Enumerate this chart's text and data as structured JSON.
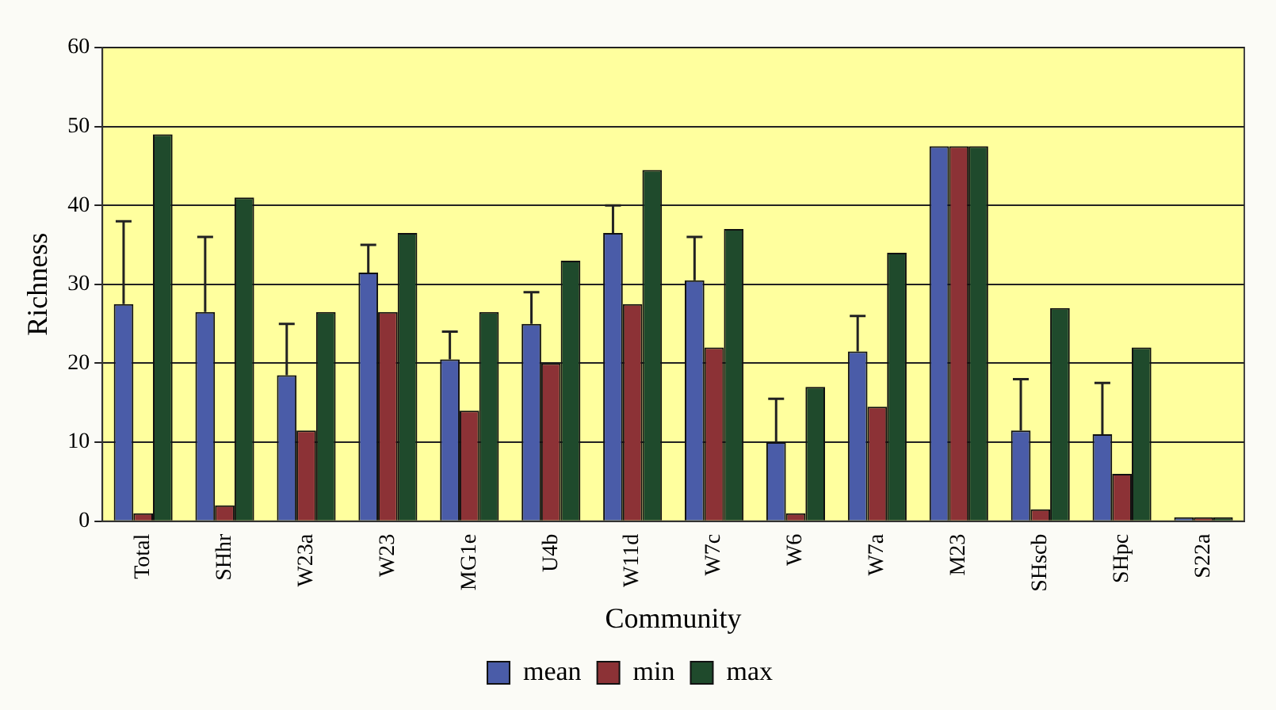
{
  "chart_data": {
    "type": "bar",
    "xlabel": "Community",
    "ylabel": "Richness",
    "categories": [
      "Total",
      "SHhr",
      "W23a",
      "W23",
      "MG1e",
      "U4b",
      "W11d",
      "W7c",
      "W6",
      "W7a",
      "M23",
      "SHscb",
      "SHpc",
      "S22a"
    ],
    "series": [
      {
        "name": "mean",
        "color": "#4a5ca8",
        "values": [
          27.5,
          26.5,
          18.5,
          31.5,
          20.5,
          25,
          36.5,
          30.5,
          10,
          21.5,
          47.5,
          11.5,
          11,
          0.5
        ],
        "errors": [
          [
            27.5,
            38
          ],
          [
            26.5,
            36
          ],
          [
            18.5,
            25
          ],
          [
            31.5,
            35
          ],
          [
            20.5,
            24
          ],
          [
            25,
            29
          ],
          [
            36.5,
            40
          ],
          [
            30.5,
            36
          ],
          [
            10,
            15.5
          ],
          [
            21.5,
            26
          ],
          null,
          [
            11.5,
            18
          ],
          [
            11,
            17.5
          ],
          null
        ]
      },
      {
        "name": "min",
        "color": "#8c3236",
        "values": [
          1,
          2,
          11.5,
          26.5,
          14,
          20,
          27.5,
          22,
          1,
          14.5,
          47.5,
          1.5,
          6,
          0.5
        ]
      },
      {
        "name": "max",
        "color": "#1f4a2c",
        "values": [
          49,
          41,
          26.5,
          36.5,
          26.5,
          33,
          44.5,
          37,
          17,
          34,
          47.5,
          27,
          22,
          0.5
        ]
      }
    ],
    "ylim": [
      0,
      60
    ],
    "yticks": [
      0,
      10,
      20,
      30,
      40,
      50,
      60
    ],
    "grid": "y",
    "legend": "bottom"
  }
}
